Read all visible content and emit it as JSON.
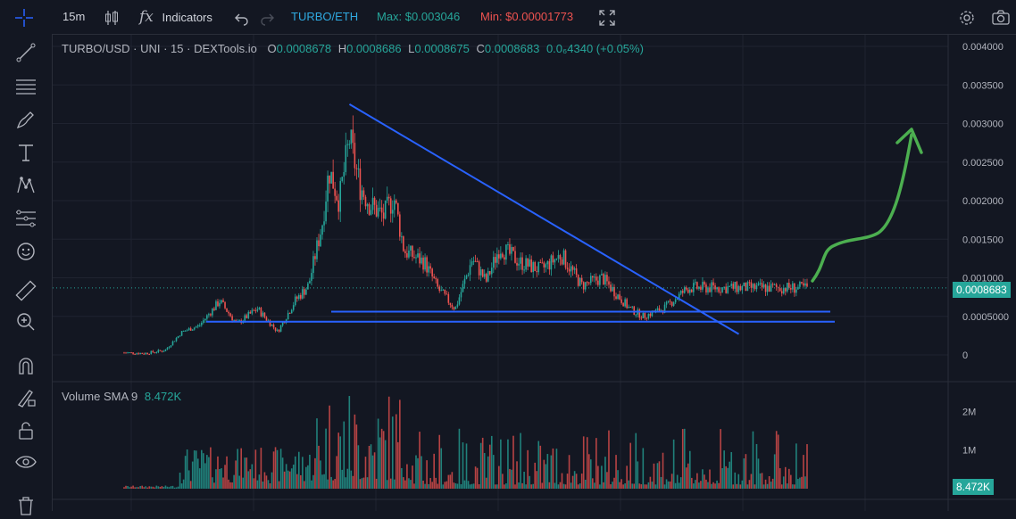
{
  "toolbar": {
    "interval": "15m",
    "indicators_label": "Indicators",
    "pair": "TURBO/ETH",
    "max_label": "Max: $0.003046",
    "min_label": "Min: $0.00001773"
  },
  "colors": {
    "up": "#26a69a",
    "down": "#ef5350",
    "trendline": "#2962ff",
    "arrow": "#4caf50",
    "background": "#131722"
  },
  "icons": [
    "candles-icon",
    "fx-icon",
    "undo-icon",
    "redo-icon",
    "fullscreen-icon",
    "settings-icon",
    "camera-icon",
    "crosshair-icon",
    "line-tool-icon",
    "horizontal-lines-icon",
    "brush-icon",
    "text-icon",
    "pattern-icon",
    "fib-icon",
    "emoji-icon",
    "ruler-icon",
    "zoom-icon",
    "magnet-icon",
    "lock-draw-icon",
    "unlock-icon",
    "eye-icon",
    "trash-icon"
  ],
  "legend": {
    "symbol": "TURBO/USD · UNI · 15 · DEXTools.io",
    "o_label": "O",
    "o": "0.0008678",
    "h_label": "H",
    "h": "0.0008686",
    "l_label": "L",
    "l": "0.0008675",
    "c_label": "C",
    "c": "0.0008683",
    "change": "0.0₆4340 (+0.05%)"
  },
  "volume_legend": {
    "name": "Volume SMA 9",
    "value": "8.472K"
  },
  "last_price_tag": "0.0008683",
  "volume_tag": "8.472K",
  "chart_data": {
    "type": "candlestick",
    "price_axis": {
      "range": [
        0,
        0.0042
      ],
      "ticks": [
        "0.004000",
        "0.003500",
        "0.003000",
        "0.002500",
        "0.002000",
        "0.001500",
        "0.001000",
        "0.0005000",
        "0"
      ]
    },
    "volume_axis": {
      "range": [
        0,
        2700000
      ],
      "ticks": [
        "2M",
        "1M"
      ]
    },
    "close_path": [
      [
        0.0,
        3e-05
      ],
      [
        0.03,
        2e-05
      ],
      [
        0.06,
        6e-05
      ],
      [
        0.085,
        0.0003
      ],
      [
        0.11,
        0.00038
      ],
      [
        0.14,
        0.0007
      ],
      [
        0.165,
        0.0004
      ],
      [
        0.195,
        0.0006
      ],
      [
        0.225,
        0.0003
      ],
      [
        0.25,
        0.0007
      ],
      [
        0.27,
        0.0009
      ],
      [
        0.29,
        0.0017
      ],
      [
        0.3,
        0.0024
      ],
      [
        0.315,
        0.002
      ],
      [
        0.33,
        0.0028
      ],
      [
        0.345,
        0.0022
      ],
      [
        0.36,
        0.00195
      ],
      [
        0.38,
        0.0018
      ],
      [
        0.395,
        0.00205
      ],
      [
        0.41,
        0.00135
      ],
      [
        0.44,
        0.0012
      ],
      [
        0.46,
        0.00085
      ],
      [
        0.485,
        0.0006
      ],
      [
        0.51,
        0.00125
      ],
      [
        0.53,
        0.00095
      ],
      [
        0.55,
        0.0014
      ],
      [
        0.58,
        0.0012
      ],
      [
        0.61,
        0.0011
      ],
      [
        0.64,
        0.0013
      ],
      [
        0.67,
        0.0009
      ],
      [
        0.7,
        0.001
      ],
      [
        0.72,
        0.0008
      ],
      [
        0.74,
        0.0006
      ],
      [
        0.76,
        0.0005
      ],
      [
        0.79,
        0.0006
      ],
      [
        0.81,
        0.00075
      ],
      [
        0.826,
        0.00087
      ]
    ],
    "annotations": [
      {
        "type": "trendline",
        "from": [
          0.33,
          0.00325
        ],
        "to": [
          0.9,
          0.00027
        ]
      },
      {
        "type": "horizontal",
        "price": 0.00056
      },
      {
        "type": "horizontal",
        "price": 0.00043
      },
      {
        "type": "arrow",
        "direction": "up"
      }
    ],
    "last_price": 0.0008683
  }
}
